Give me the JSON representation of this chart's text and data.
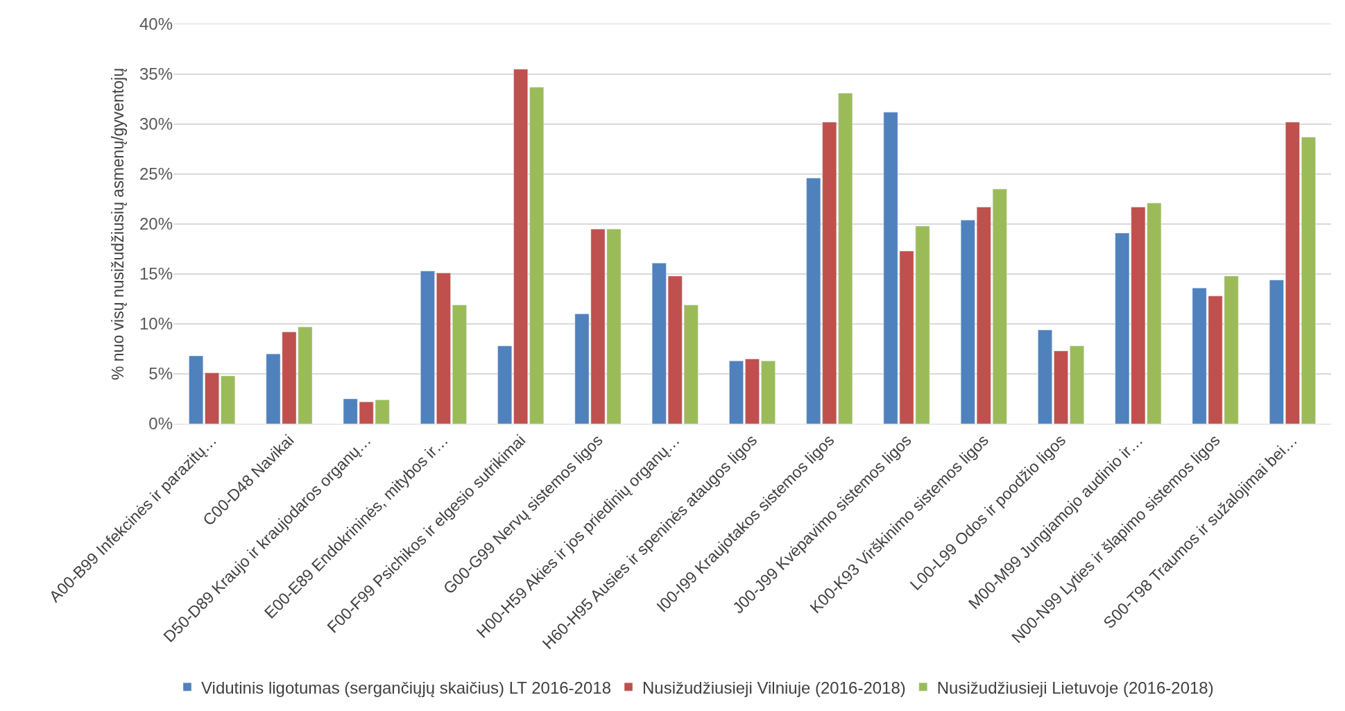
{
  "chart_data": {
    "type": "bar",
    "ylabel": "% nuo visų nusižudžiusių asmenų/gyventojų",
    "categories": [
      "A00-B99 Infekcinės ir parazitų…",
      "C00-D48 Navikai",
      "D50-D89 Kraujo ir kraujodaros organų…",
      "E00-E89 Endokrininės, mitybos ir…",
      "F00-F99 Psichikos ir elgesio sutrikimai",
      "G00-G99 Nervų sistemos ligos",
      "H00-H59 Akies ir jos priedinių organų…",
      "H60-H95 Ausies ir speninės ataugos ligos",
      "I00-I99 Kraujotakos sistemos ligos",
      "J00-J99 Kvėpavimo sistemos ligos",
      "K00-K93 Virškinimo sistemos ligos",
      "L00-L99 Odos ir poodžio ligos",
      "M00-M99 Jungiamojo audinio ir…",
      "N00-N99 Lyties ir šlapimo sistemos ligos",
      "S00-T98 Traumos ir sužalojimai bei…"
    ],
    "series": [
      {
        "name": "Vidutinis ligotumas (sergančiųjų skaičius) LT 2016-2018",
        "color": "#4f81bd",
        "values": [
          6.8,
          7.0,
          2.5,
          15.3,
          7.8,
          11.0,
          16.1,
          6.3,
          24.6,
          31.2,
          20.4,
          9.4,
          19.1,
          13.6,
          14.4
        ]
      },
      {
        "name": "Nusižudžiusieji Vilniuje (2016-2018)",
        "color": "#c0504d",
        "values": [
          5.1,
          9.2,
          2.2,
          15.1,
          35.5,
          19.5,
          14.8,
          6.5,
          30.2,
          17.3,
          21.7,
          7.3,
          21.7,
          12.8,
          30.2
        ]
      },
      {
        "name": "Nusižudžiusieji Lietuvoje (2016-2018)",
        "color": "#9bbb59",
        "values": [
          4.8,
          9.7,
          2.4,
          11.9,
          33.7,
          19.5,
          11.9,
          6.3,
          33.1,
          19.8,
          23.5,
          7.8,
          22.1,
          14.8,
          28.7
        ]
      }
    ],
    "ylim": [
      0,
      40
    ],
    "yticks": [
      {
        "value": 0,
        "label": "0%"
      },
      {
        "value": 5,
        "label": "5%"
      },
      {
        "value": 10,
        "label": "10%"
      },
      {
        "value": 15,
        "label": "15%"
      },
      {
        "value": 20,
        "label": "20%"
      },
      {
        "value": 25,
        "label": "25%"
      },
      {
        "value": 30,
        "label": "30%"
      },
      {
        "value": 35,
        "label": "35%"
      },
      {
        "value": 40,
        "label": "40%"
      }
    ],
    "grid": "y",
    "legend": "bottom"
  }
}
